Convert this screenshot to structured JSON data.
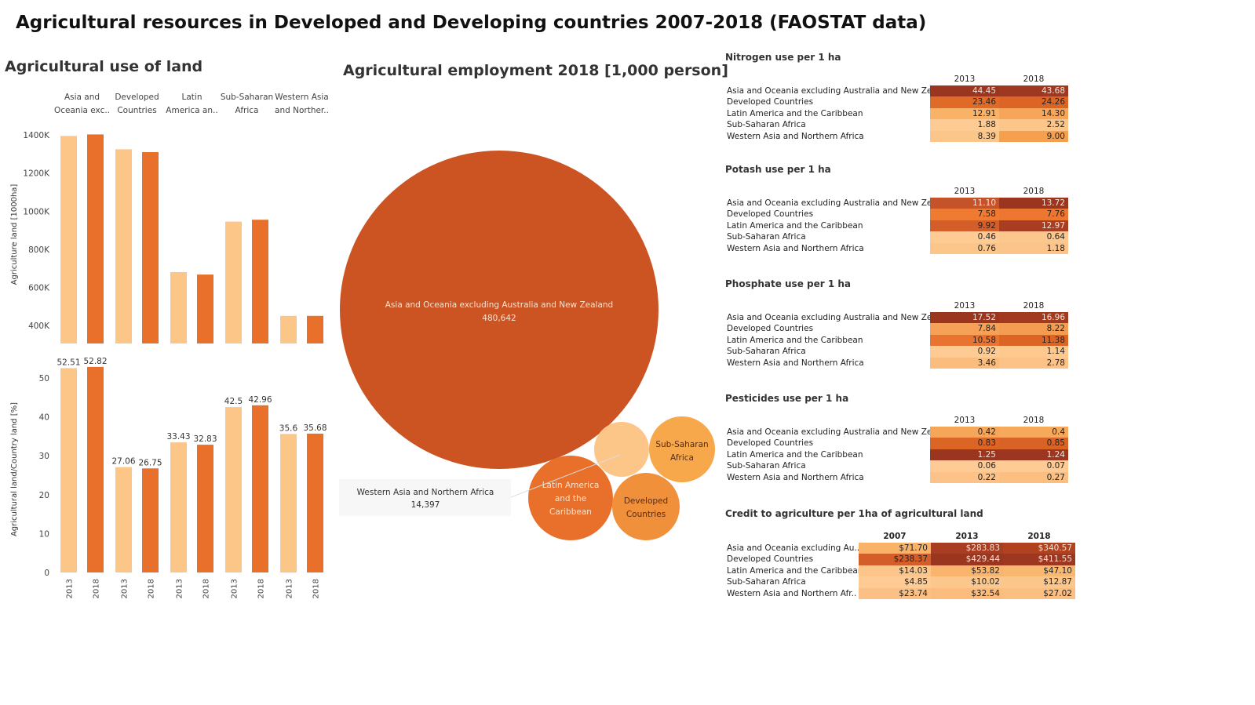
{
  "page": {
    "title": "Agricultural resources in Developed and Developing countries 2007-2018 (FAOSTAT data)"
  },
  "land_section_title": "Agricultural use of land",
  "employment_section_title": "Agricultural employment 2018 [1,000 person]",
  "colors": {
    "y2013": "#fdc689",
    "y2018": "#e8702a",
    "bubble_main": "#cc5322"
  },
  "chart_data": [
    {
      "type": "bar",
      "name": "land",
      "categories": [
        "Asia and Oceania exc..",
        "Developed Countries",
        "Latin America an..",
        "Sub-Saharan Africa",
        "Western Asia and Norther.."
      ],
      "category_labels": [
        [
          "Asia and",
          "Oceania exc.."
        ],
        [
          "Developed",
          "Countries"
        ],
        [
          "Latin",
          "America an.."
        ],
        [
          "Sub-Saharan",
          "Africa"
        ],
        [
          "Western Asia",
          "and Norther.."
        ]
      ],
      "x_labels": [
        "2013",
        "2018"
      ],
      "series": [
        {
          "name": "2013",
          "values": [
            1395000,
            1325000,
            680000,
            945000,
            450000
          ]
        },
        {
          "name": "2018",
          "values": [
            1403000,
            1310000,
            667000,
            955000,
            450000
          ]
        }
      ],
      "ylabel": "Agriculture land [1000ha]",
      "yticks": [
        "400K",
        "600K",
        "800K",
        "1000K",
        "1200K",
        "1400K"
      ],
      "ytick_values": [
        400000,
        600000,
        800000,
        1000000,
        1200000,
        1400000
      ],
      "ylim": [
        305000,
        1450000
      ]
    },
    {
      "type": "bar",
      "name": "land_share",
      "categories": [
        "Asia and Oceania exc..",
        "Developed Countries",
        "Latin America an..",
        "Sub-Saharan Africa",
        "Western Asia and Norther.."
      ],
      "x_labels": [
        "2013",
        "2018"
      ],
      "series": [
        {
          "name": "2013",
          "values": [
            52.51,
            27.06,
            33.43,
            42.5,
            35.6
          ]
        },
        {
          "name": "2018",
          "values": [
            52.82,
            26.75,
            32.83,
            42.96,
            35.68
          ]
        }
      ],
      "value_labels": {
        "2013": [
          "52.51",
          "27.06",
          "33.43",
          "42.5",
          "35.6"
        ],
        "2018": [
          "52.82",
          "26.75",
          "32.83",
          "42.96",
          "35.68"
        ]
      },
      "ylabel": "Agricultural land/Country land  [%]",
      "yticks": [
        "0",
        "10",
        "20",
        "30",
        "40",
        "50"
      ],
      "ytick_values": [
        0,
        10,
        20,
        30,
        40,
        50
      ],
      "ylim": [
        0,
        53
      ]
    },
    {
      "type": "bubble",
      "name": "employment",
      "items": [
        {
          "label": "Asia and Oceania excluding Australia and New Zealand",
          "value_label": "480,642",
          "value": 480642,
          "color": "#cc5322",
          "text_color": "#fde3cf"
        },
        {
          "label": "Latin America and the Caribbean",
          "value": 40000,
          "color": "#e8702a",
          "text_color": "#fde3cf"
        },
        {
          "label": "Developed Countries",
          "value": 19000,
          "color": "#f0903a",
          "text_color": "#5a2a10"
        },
        {
          "label": "Sub-Saharan Africa",
          "value": 20000,
          "color": "#f7a84a",
          "text_color": "#5a2a10"
        },
        {
          "label": "Western Asia and Northern Africa",
          "value": 14397,
          "color": "#fdc689",
          "text_color": "#333"
        }
      ],
      "tooltip": {
        "title": "Western Asia and Northern Africa",
        "value": "14,397"
      }
    }
  ],
  "tables": [
    {
      "title": "Nitrogen use per 1 ha",
      "columns": [
        "2013",
        "2018"
      ],
      "rows": [
        {
          "label": "Asia and Oceania excluding Australia and New Ze..",
          "values": [
            "44.45",
            "43.68"
          ],
          "colors": [
            "#9a3520",
            "#9f3820"
          ]
        },
        {
          "label": "Developed Countries",
          "values": [
            "23.46",
            "24.26"
          ],
          "colors": [
            "#e06a28",
            "#dc6526"
          ]
        },
        {
          "label": "Latin America and the Caribbean",
          "values": [
            "12.91",
            "14.30"
          ],
          "colors": [
            "#f8b368",
            "#f6a55b"
          ]
        },
        {
          "label": "Sub-Saharan Africa",
          "values": [
            "1.88",
            "2.52"
          ],
          "colors": [
            "#fdcb93",
            "#fcc68b"
          ]
        },
        {
          "label": "Western Asia and Northern Africa",
          "values": [
            "8.39",
            "9.00"
          ],
          "colors": [
            "#fcc68b",
            "#f4a04e"
          ]
        }
      ]
    },
    {
      "title": "Potash use per 1 ha",
      "columns": [
        "2013",
        "2018"
      ],
      "rows": [
        {
          "label": "Asia and Oceania excluding Australia and New Ze..",
          "values": [
            "11.10",
            "13.72"
          ],
          "colors": [
            "#c5532a",
            "#9a3520"
          ]
        },
        {
          "label": "Developed Countries",
          "values": [
            "7.58",
            "7.76"
          ],
          "colors": [
            "#ef7b32",
            "#ed7630"
          ]
        },
        {
          "label": "Latin America and the Caribbean",
          "values": [
            "9.92",
            "12.97"
          ],
          "colors": [
            "#d35e2a",
            "#a93d22"
          ]
        },
        {
          "label": "Sub-Saharan Africa",
          "values": [
            "0.46",
            "0.64"
          ],
          "colors": [
            "#fdcb93",
            "#fcc78c"
          ]
        },
        {
          "label": "Western Asia and Northern Africa",
          "values": [
            "0.76",
            "1.18"
          ],
          "colors": [
            "#fcc68b",
            "#fcc38a"
          ]
        }
      ]
    },
    {
      "title": "Phosphate use per 1 ha",
      "columns": [
        "2013",
        "2018"
      ],
      "rows": [
        {
          "label": "Asia and Oceania excluding Australia and New Ze..",
          "values": [
            "17.52",
            "16.96"
          ],
          "colors": [
            "#9a3520",
            "#a23a21"
          ]
        },
        {
          "label": "Developed Countries",
          "values": [
            "7.84",
            "8.22"
          ],
          "colors": [
            "#f5a157",
            "#f39c52"
          ]
        },
        {
          "label": "Latin America and the Caribbean",
          "values": [
            "10.58",
            "11.38"
          ],
          "colors": [
            "#e97330",
            "#dc6526"
          ]
        },
        {
          "label": "Sub-Saharan Africa",
          "values": [
            "0.92",
            "1.14"
          ],
          "colors": [
            "#fdcb93",
            "#fdc98f"
          ]
        },
        {
          "label": "Western Asia and Northern Africa",
          "values": [
            "3.46",
            "2.78"
          ],
          "colors": [
            "#fbbd7e",
            "#fcc287"
          ]
        }
      ]
    },
    {
      "title": "Pesticides use per 1 ha",
      "columns": [
        "2013",
        "2018"
      ],
      "rows": [
        {
          "label": "Asia and Oceania excluding Australia and New Ze..",
          "values": [
            "0.42",
            "0.4"
          ],
          "colors": [
            "#f6a658",
            "#f6a85b"
          ]
        },
        {
          "label": "Developed Countries",
          "values": [
            "0.83",
            "0.85"
          ],
          "colors": [
            "#dc6526",
            "#d96227"
          ]
        },
        {
          "label": "Latin America and the Caribbean",
          "values": [
            "1.25",
            "1.24"
          ],
          "colors": [
            "#9a3520",
            "#9c3620"
          ]
        },
        {
          "label": "Sub-Saharan Africa",
          "values": [
            "0.06",
            "0.07"
          ],
          "colors": [
            "#fdcb93",
            "#fdcb93"
          ]
        },
        {
          "label": "Western Asia and Northern Africa",
          "values": [
            "0.22",
            "0.27"
          ],
          "colors": [
            "#fcc287",
            "#fbbf82"
          ]
        }
      ]
    },
    {
      "title_bold": "Credit to agriculture",
      "title_rest": " per 1ha of agricultural land",
      "columns": [
        "2007",
        "2013",
        "2018"
      ],
      "rows": [
        {
          "label": "Asia and Oceania excluding Au..",
          "values": [
            "$71.70",
            "$283.83",
            "$340.57"
          ],
          "colors": [
            "#f8b368",
            "#a93d22",
            "#b0421f"
          ]
        },
        {
          "label": "Developed Countries",
          "values": [
            "$238.37",
            "$429.44",
            "$411.55"
          ],
          "colors": [
            "#d35e2a",
            "#9a3520",
            "#9d3720"
          ]
        },
        {
          "label": "Latin America and the Caribbean",
          "values": [
            "$14.03",
            "$53.82",
            "$47.10"
          ],
          "colors": [
            "#fcc68b",
            "#f9b56d",
            "#f9b870"
          ]
        },
        {
          "label": "Sub-Saharan Africa",
          "values": [
            "$4.85",
            "$10.02",
            "$12.87"
          ],
          "colors": [
            "#fdcb93",
            "#fcc78c",
            "#fcc68b"
          ]
        },
        {
          "label": "Western Asia and Northern Afr..",
          "values": [
            "$23.74",
            "$32.54",
            "$27.02"
          ],
          "colors": [
            "#fbc085",
            "#fbbc7e",
            "#fbbf82"
          ]
        }
      ]
    }
  ]
}
